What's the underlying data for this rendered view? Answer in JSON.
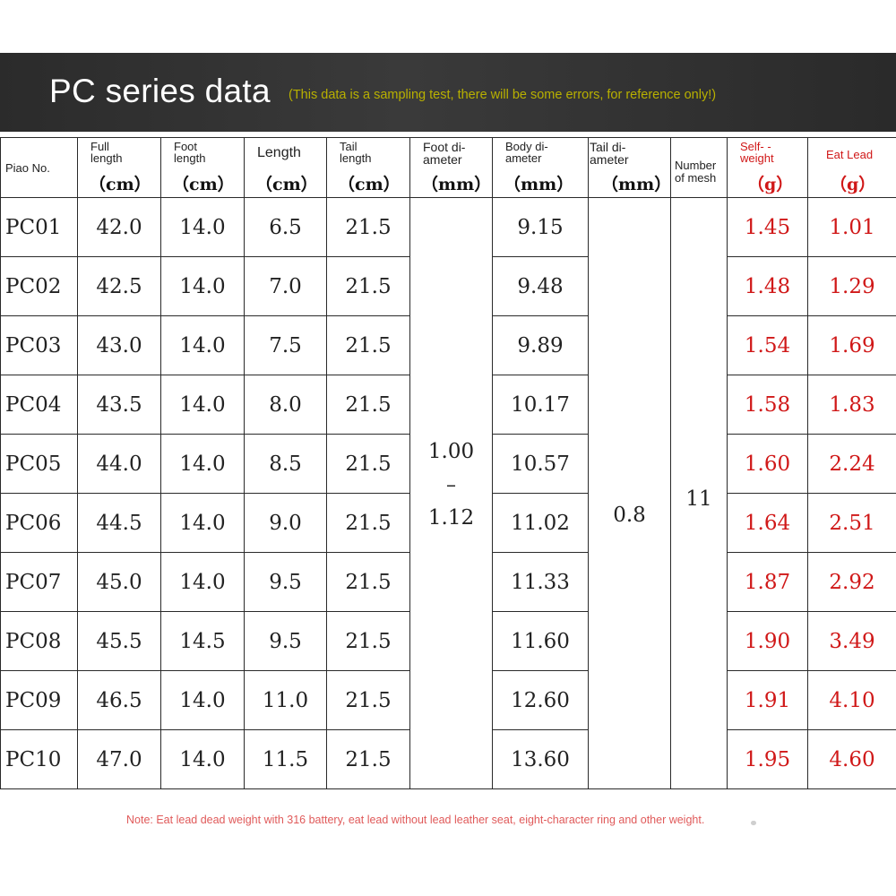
{
  "banner": {
    "title": "PC series data",
    "subtitle": "(This data is a sampling test, there will be some errors, for reference only!)"
  },
  "headers": {
    "piao_no": "Piao No.",
    "full_length": "Full length",
    "foot_length": "Foot length",
    "length": "Length",
    "tail_length": "Tail length",
    "foot_diameter": "Foot di- ameter",
    "body_diameter": "Body di- ameter",
    "tail_diameter": "Tail di- ameter",
    "number_of_mesh": "Number of mesh",
    "self_weight": "Self- -weight",
    "eat_lead": "Eat Lead",
    "unit_cm": "（cm）",
    "unit_mm": "（mm）",
    "unit_g": "（g）"
  },
  "rows": [
    {
      "id": "PC01",
      "full": "42.0",
      "foot": "14.0",
      "len": "6.5",
      "tail": "21.5",
      "body": "9.15",
      "self": "1.45",
      "lead": "1.01"
    },
    {
      "id": "PC02",
      "full": "42.5",
      "foot": "14.0",
      "len": "7.0",
      "tail": "21.5",
      "body": "9.48",
      "self": "1.48",
      "lead": "1.29"
    },
    {
      "id": "PC03",
      "full": "43.0",
      "foot": "14.0",
      "len": "7.5",
      "tail": "21.5",
      "body": "9.89",
      "self": "1.54",
      "lead": "1.69"
    },
    {
      "id": "PC04",
      "full": "43.5",
      "foot": "14.0",
      "len": "8.0",
      "tail": "21.5",
      "body": "10.17",
      "self": "1.58",
      "lead": "1.83"
    },
    {
      "id": "PC05",
      "full": "44.0",
      "foot": "14.0",
      "len": "8.5",
      "tail": "21.5",
      "body": "10.57",
      "self": "1.60",
      "lead": "2.24"
    },
    {
      "id": "PC06",
      "full": "44.5",
      "foot": "14.0",
      "len": "9.0",
      "tail": "21.5",
      "body": "11.02",
      "self": "1.64",
      "lead": "2.51"
    },
    {
      "id": "PC07",
      "full": "45.0",
      "foot": "14.0",
      "len": "9.5",
      "tail": "21.5",
      "body": "11.33",
      "self": "1.87",
      "lead": "2.92"
    },
    {
      "id": "PC08",
      "full": "45.5",
      "foot": "14.5",
      "len": "9.5",
      "tail": "21.5",
      "body": "11.60",
      "self": "1.90",
      "lead": "3.49"
    },
    {
      "id": "PC09",
      "full": "46.5",
      "foot": "14.0",
      "len": "11.0",
      "tail": "21.5",
      "body": "12.60",
      "self": "1.91",
      "lead": "4.10"
    },
    {
      "id": "PC10",
      "full": "47.0",
      "foot": "14.0",
      "len": "11.5",
      "tail": "21.5",
      "body": "13.60",
      "self": "1.95",
      "lead": "4.60"
    }
  ],
  "merged": {
    "foot_diameter_min": "1.00",
    "foot_diameter_sep": "–",
    "foot_diameter_max": "1.12",
    "tail_diameter": "0.8",
    "number_of_mesh": "11"
  },
  "note": "Note: Eat lead dead weight with 316 battery, eat lead without lead leather seat, eight-character ring and other weight.",
  "colors": {
    "banner_bg": "#2b2b2b",
    "title": "#ffffff",
    "subtitle": "#b8b000",
    "red": "#d01818",
    "note": "#e05a5a"
  }
}
